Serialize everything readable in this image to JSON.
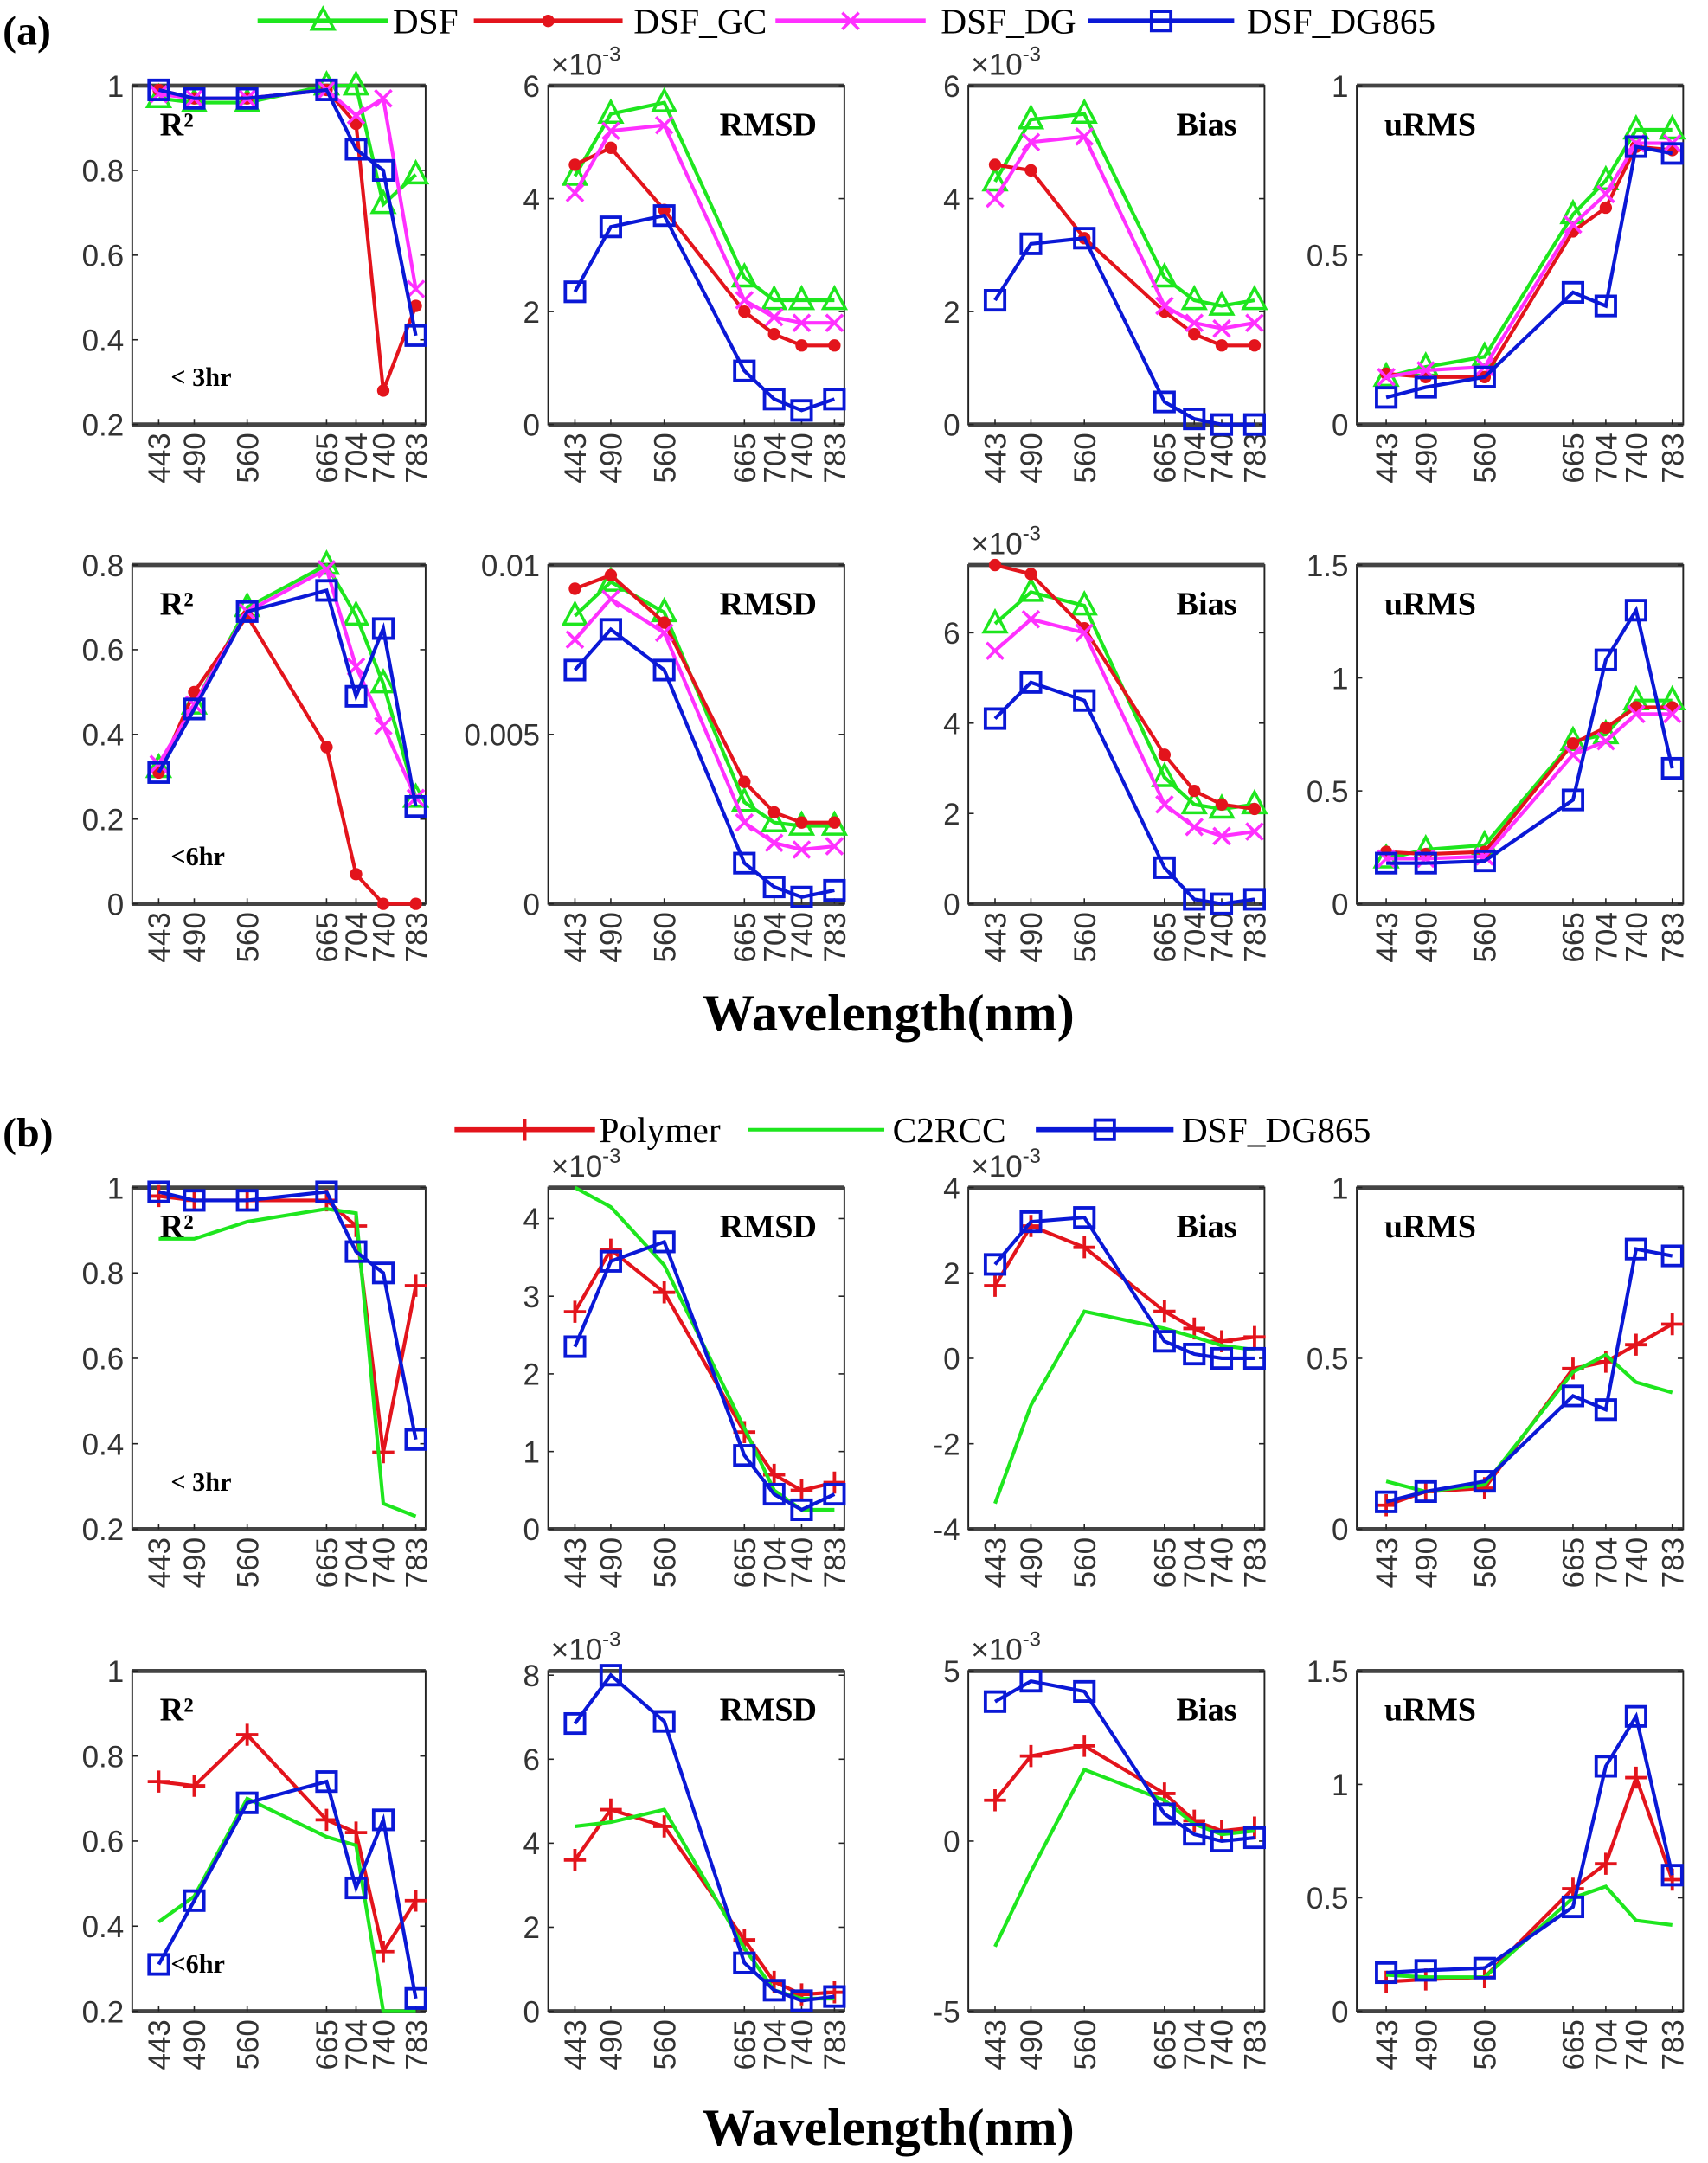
{
  "chart_data": [
    {
      "group": "(a)",
      "xlabel": "Wavelength(nm)",
      "type": "line",
      "legend": [
        {
          "name": "DSF",
          "color": "#1ee61e",
          "marker": "triangle"
        },
        {
          "name": "DSF_GC",
          "color": "#e3141c",
          "marker": "dot"
        },
        {
          "name": "DSF_DG",
          "color": "#ff30ff",
          "marker": "x"
        },
        {
          "name": "DSF_DG865",
          "color": "#0a18d6",
          "marker": "square"
        }
      ],
      "x": [
        443,
        490,
        560,
        665,
        704,
        740,
        783
      ],
      "panels": [
        {
          "title": "R²",
          "note": "< 3hr",
          "ylim": [
            0.2,
            1
          ],
          "yticks": [
            0.2,
            0.4,
            0.6,
            0.8,
            1
          ],
          "ytick_labels": [
            "0.2",
            "0.4",
            "0.6",
            "0.8",
            "1"
          ],
          "exponent": "",
          "series": [
            [
              0.97,
              0.96,
              0.96,
              1.0,
              1.0,
              0.72,
              0.79
            ],
            [
              0.99,
              0.97,
              0.97,
              0.99,
              0.91,
              0.28,
              0.48
            ],
            [
              0.98,
              0.97,
              0.97,
              0.99,
              0.93,
              0.97,
              0.52
            ],
            [
              0.99,
              0.97,
              0.97,
              0.99,
              0.85,
              0.8,
              0.41
            ]
          ]
        },
        {
          "title": "RMSD",
          "note": "",
          "ylim": [
            0,
            6
          ],
          "yticks": [
            0,
            2,
            4,
            6
          ],
          "ytick_labels": [
            "0",
            "2",
            "4",
            "6"
          ],
          "exponent": "-3",
          "series": [
            [
              4.4,
              5.5,
              5.7,
              2.6,
              2.2,
              2.2,
              2.2
            ],
            [
              4.6,
              4.9,
              3.8,
              2.0,
              1.6,
              1.4,
              1.4
            ],
            [
              4.1,
              5.2,
              5.3,
              2.2,
              1.9,
              1.8,
              1.8
            ],
            [
              2.35,
              3.5,
              3.7,
              0.95,
              0.45,
              0.25,
              0.45
            ]
          ]
        },
        {
          "title": "Bias",
          "note": "",
          "ylim": [
            0,
            6
          ],
          "yticks": [
            0,
            2,
            4,
            6
          ],
          "ytick_labels": [
            "0",
            "2",
            "4",
            "6"
          ],
          "exponent": "-3",
          "series": [
            [
              4.3,
              5.4,
              5.5,
              2.6,
              2.2,
              2.1,
              2.2
            ],
            [
              4.6,
              4.5,
              3.3,
              2.0,
              1.6,
              1.4,
              1.4
            ],
            [
              4.0,
              5.0,
              5.1,
              2.1,
              1.8,
              1.7,
              1.8
            ],
            [
              2.2,
              3.2,
              3.3,
              0.4,
              0.1,
              0.0,
              0.0
            ]
          ]
        },
        {
          "title": "uRMS",
          "note": "",
          "ylim": [
            0,
            1
          ],
          "yticks": [
            0,
            0.5,
            1
          ],
          "ytick_labels": [
            "0",
            "0.5",
            "1"
          ],
          "exponent": "",
          "series": [
            [
              0.14,
              0.17,
              0.2,
              0.62,
              0.72,
              0.87,
              0.87
            ],
            [
              0.15,
              0.14,
              0.14,
              0.57,
              0.64,
              0.82,
              0.81
            ],
            [
              0.14,
              0.16,
              0.17,
              0.59,
              0.68,
              0.83,
              0.83
            ],
            [
              0.08,
              0.11,
              0.14,
              0.39,
              0.35,
              0.82,
              0.8
            ]
          ]
        },
        {
          "title": "R²",
          "note": "<6hr",
          "ylim": [
            0,
            0.8
          ],
          "yticks": [
            0,
            0.2,
            0.4,
            0.6,
            0.8
          ],
          "ytick_labels": [
            "0",
            "0.2",
            "0.4",
            "0.6",
            "0.8"
          ],
          "exponent": "",
          "series": [
            [
              0.32,
              0.47,
              0.7,
              0.8,
              0.68,
              0.52,
              0.25
            ],
            [
              0.31,
              0.5,
              0.68,
              0.37,
              0.07,
              0.0,
              0.0
            ],
            [
              0.33,
              0.47,
              0.69,
              0.79,
              0.56,
              0.42,
              0.25
            ],
            [
              0.31,
              0.46,
              0.69,
              0.74,
              0.49,
              0.65,
              0.23
            ]
          ]
        },
        {
          "title": "RMSD",
          "note": "",
          "ylim": [
            0,
            0.01
          ],
          "yticks": [
            0,
            0.005,
            0.01
          ],
          "ytick_labels": [
            "0",
            "0.005",
            "0.01"
          ],
          "exponent": "",
          "series": [
            [
              0.0085,
              0.0095,
              0.0086,
              0.003,
              0.0024,
              0.0023,
              0.0023
            ],
            [
              0.0093,
              0.0097,
              0.0083,
              0.0036,
              0.0027,
              0.0024,
              0.0024
            ],
            [
              0.0078,
              0.009,
              0.008,
              0.0024,
              0.0018,
              0.0016,
              0.0017
            ],
            [
              0.0069,
              0.0081,
              0.0069,
              0.0012,
              0.0005,
              0.0002,
              0.0004
            ]
          ]
        },
        {
          "title": "Bias",
          "note": "",
          "ylim": [
            0,
            7.5
          ],
          "yticks": [
            0,
            2,
            4,
            6
          ],
          "ytick_labels": [
            "0",
            "2",
            "4",
            "6"
          ],
          "exponent": "-3",
          "series": [
            [
              6.2,
              6.9,
              6.6,
              2.8,
              2.2,
              2.1,
              2.2
            ],
            [
              7.5,
              7.3,
              6.1,
              3.3,
              2.5,
              2.2,
              2.1
            ],
            [
              5.6,
              6.3,
              6.0,
              2.2,
              1.7,
              1.5,
              1.6
            ],
            [
              4.1,
              4.9,
              4.5,
              0.8,
              0.1,
              0.0,
              0.1
            ]
          ]
        },
        {
          "title": "uRMS",
          "note": "",
          "ylim": [
            0,
            1.5
          ],
          "yticks": [
            0,
            0.5,
            1,
            1.5
          ],
          "ytick_labels": [
            "0",
            "0.5",
            "1",
            "1.5"
          ],
          "exponent": "",
          "series": [
            [
              0.2,
              0.24,
              0.26,
              0.72,
              0.75,
              0.9,
              0.9
            ],
            [
              0.23,
              0.22,
              0.23,
              0.71,
              0.78,
              0.87,
              0.87
            ],
            [
              0.2,
              0.2,
              0.21,
              0.66,
              0.72,
              0.84,
              0.84
            ],
            [
              0.18,
              0.18,
              0.19,
              0.46,
              1.08,
              1.3,
              0.6
            ]
          ]
        }
      ]
    },
    {
      "group": "(b)",
      "xlabel": "Wavelength(nm)",
      "type": "line",
      "legend": [
        {
          "name": "Polymer",
          "color": "#e3141c",
          "marker": "plus"
        },
        {
          "name": "C2RCC",
          "color": "#1ee61e",
          "marker": "none"
        },
        {
          "name": "DSF_DG865",
          "color": "#0a18d6",
          "marker": "square"
        }
      ],
      "x": [
        443,
        490,
        560,
        665,
        704,
        740,
        783
      ],
      "panels": [
        {
          "title": "R²",
          "note": "< 3hr",
          "ylim": [
            0.2,
            1
          ],
          "yticks": [
            0.2,
            0.4,
            0.6,
            0.8,
            1
          ],
          "ytick_labels": [
            "0.2",
            "0.4",
            "0.6",
            "0.8",
            "1"
          ],
          "exponent": "",
          "series": [
            [
              0.98,
              0.97,
              0.97,
              0.97,
              0.91,
              0.38,
              0.77
            ],
            [
              0.88,
              0.88,
              0.92,
              0.95,
              0.94,
              0.26,
              0.23
            ],
            [
              0.99,
              0.97,
              0.97,
              0.99,
              0.85,
              0.8,
              0.41
            ]
          ]
        },
        {
          "title": "RMSD",
          "note": "",
          "ylim": [
            0,
            4.4
          ],
          "yticks": [
            0,
            1,
            2,
            3,
            4
          ],
          "ytick_labels": [
            "0",
            "1",
            "2",
            "3",
            "4"
          ],
          "exponent": "-3",
          "series": [
            [
              2.8,
              3.6,
              3.05,
              1.25,
              0.7,
              0.5,
              0.6
            ],
            [
              4.4,
              4.15,
              3.4,
              1.3,
              0.5,
              0.25,
              0.25
            ],
            [
              2.35,
              3.45,
              3.7,
              0.95,
              0.45,
              0.25,
              0.45
            ]
          ]
        },
        {
          "title": "Bias",
          "note": "",
          "ylim": [
            -4,
            4
          ],
          "yticks": [
            -4,
            -2,
            0,
            2,
            4
          ],
          "ytick_labels": [
            "-4",
            "-2",
            "0",
            "2",
            "4"
          ],
          "exponent": "-3",
          "series": [
            [
              1.7,
              3.1,
              2.6,
              1.1,
              0.7,
              0.4,
              0.5
            ],
            [
              -3.4,
              -1.1,
              1.1,
              0.7,
              0.5,
              0.3,
              0.2
            ],
            [
              2.2,
              3.2,
              3.3,
              0.4,
              0.1,
              0.0,
              0.0
            ]
          ]
        },
        {
          "title": "uRMS",
          "note": "",
          "ylim": [
            0,
            1
          ],
          "yticks": [
            0,
            0.5,
            1
          ],
          "ytick_labels": [
            "0",
            "0.5",
            "1"
          ],
          "exponent": "",
          "series": [
            [
              0.07,
              0.11,
              0.12,
              0.47,
              0.49,
              0.54,
              0.6
            ],
            [
              0.14,
              0.11,
              0.13,
              0.46,
              0.51,
              0.43,
              0.4
            ],
            [
              0.08,
              0.11,
              0.14,
              0.39,
              0.35,
              0.82,
              0.8
            ]
          ]
        },
        {
          "title": "R²",
          "note": "<6hr",
          "ylim": [
            0.2,
            1
          ],
          "yticks": [
            0.2,
            0.4,
            0.6,
            0.8,
            1
          ],
          "ytick_labels": [
            "0.2",
            "0.4",
            "0.6",
            "0.8",
            "1"
          ],
          "exponent": "",
          "series": [
            [
              0.74,
              0.73,
              0.85,
              0.65,
              0.62,
              0.34,
              0.46
            ],
            [
              0.41,
              0.47,
              0.7,
              0.61,
              0.59,
              0.2,
              0.2
            ],
            [
              0.31,
              0.46,
              0.69,
              0.74,
              0.49,
              0.65,
              0.23
            ]
          ]
        },
        {
          "title": "RMSD",
          "note": "",
          "ylim": [
            0,
            8.1
          ],
          "yticks": [
            0,
            2,
            4,
            6,
            8
          ],
          "ytick_labels": [
            "0",
            "2",
            "4",
            "6",
            "8"
          ],
          "exponent": "-3",
          "series": [
            [
              3.6,
              4.8,
              4.4,
              1.7,
              0.7,
              0.4,
              0.45
            ],
            [
              4.4,
              4.5,
              4.8,
              1.5,
              0.5,
              0.3,
              0.3
            ],
            [
              6.85,
              8.0,
              6.9,
              1.15,
              0.5,
              0.25,
              0.35
            ]
          ]
        },
        {
          "title": "Bias",
          "note": "",
          "ylim": [
            -5,
            5
          ],
          "yticks": [
            -5,
            0,
            5
          ],
          "ytick_labels": [
            "-5",
            "0",
            "5"
          ],
          "exponent": "-3",
          "series": [
            [
              1.2,
              2.5,
              2.8,
              1.4,
              0.6,
              0.3,
              0.4
            ],
            [
              -3.1,
              -0.9,
              2.1,
              1.2,
              0.5,
              0.2,
              0.3
            ],
            [
              4.1,
              4.7,
              4.4,
              0.8,
              0.2,
              0.0,
              0.1
            ]
          ]
        },
        {
          "title": "uRMS",
          "note": "",
          "ylim": [
            0,
            1.5
          ],
          "yticks": [
            0,
            0.5,
            1,
            1.5
          ],
          "ytick_labels": [
            "0",
            "0.5",
            "1",
            "1.5"
          ],
          "exponent": "",
          "series": [
            [
              0.13,
              0.14,
              0.15,
              0.54,
              0.65,
              1.03,
              0.58
            ],
            [
              0.16,
              0.15,
              0.15,
              0.5,
              0.55,
              0.4,
              0.38
            ],
            [
              0.17,
              0.18,
              0.19,
              0.46,
              1.08,
              1.3,
              0.6
            ]
          ]
        }
      ]
    }
  ]
}
